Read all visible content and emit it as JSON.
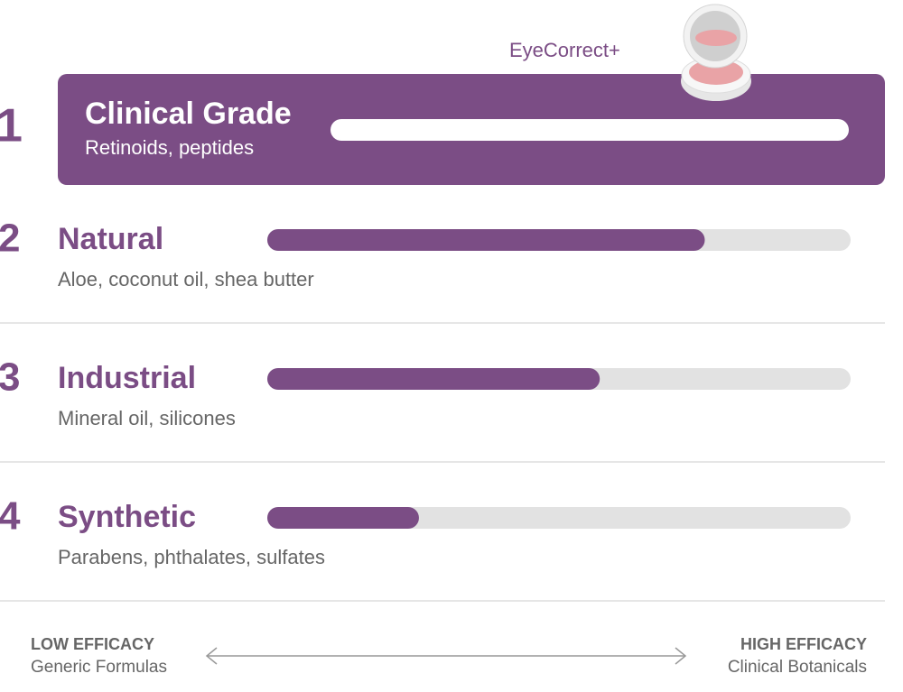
{
  "product_label": "EyeCorrect+",
  "xlim": [
    0,
    100
  ],
  "items": [
    {
      "rank": 1,
      "title": "Clinical Grade",
      "subtitle": "Retinoids, peptides",
      "score": 100
    },
    {
      "rank": 2,
      "title": "Natural",
      "subtitle": "Aloe, coconut oil, shea butter",
      "score": 75
    },
    {
      "rank": 3,
      "title": "Industrial",
      "subtitle": "Mineral oil, silicones",
      "score": 57
    },
    {
      "rank": 4,
      "title": "Synthetic",
      "subtitle": "Parabens, phthalates, sulfates",
      "score": 26
    }
  ],
  "scale": {
    "low_title": "LOW EFFICACY",
    "low_subtitle": "Generic Formulas",
    "high_title": "HIGH EFFICACY",
    "high_subtitle": "Clinical Botanicals"
  }
}
